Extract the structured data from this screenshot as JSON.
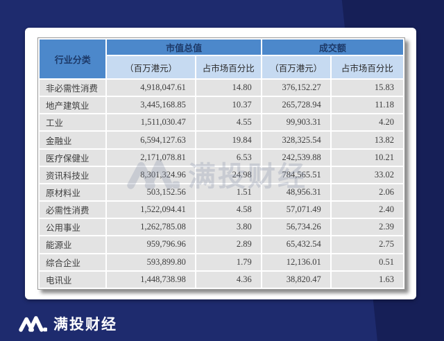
{
  "colors": {
    "background_navy": "#1e2b6e",
    "background_navy_dark": "#161f57",
    "header_blue": "#4c88cb",
    "subheader_blue": "#c6daf1",
    "row_gray": "#e3e3e3",
    "header_text_navy": "#1d3a69",
    "brand_white": "#ffffff"
  },
  "table": {
    "header": {
      "industry": "行业分类",
      "market_cap_group": "市值总值",
      "turnover_group": "成交额",
      "unit": "（百万港元）",
      "pct": "占市场百分比"
    }
  },
  "watermark": {
    "text": "满投财经"
  },
  "footer": {
    "brand": "满投财经"
  },
  "chart_data": {
    "type": "table",
    "columns": [
      "行业分类",
      "市值总值（百万港元）",
      "市值总值占市场百分比",
      "成交额（百万港元）",
      "成交额占市场百分比"
    ],
    "rows": [
      {
        "industry": "非必需性消费",
        "mcap": "4,918,047.61",
        "mcap_pct": "14.80",
        "turnover": "376,152.27",
        "turnover_pct": "15.83"
      },
      {
        "industry": "地产建筑业",
        "mcap": "3,445,168.85",
        "mcap_pct": "10.37",
        "turnover": "265,728.94",
        "turnover_pct": "11.18"
      },
      {
        "industry": "工业",
        "mcap": "1,511,030.47",
        "mcap_pct": "4.55",
        "turnover": "99,903.31",
        "turnover_pct": "4.20"
      },
      {
        "industry": "金融业",
        "mcap": "6,594,127.63",
        "mcap_pct": "19.84",
        "turnover": "328,325.54",
        "turnover_pct": "13.82"
      },
      {
        "industry": "医疗保健业",
        "mcap": "2,171,078.81",
        "mcap_pct": "6.53",
        "turnover": "242,539.88",
        "turnover_pct": "10.21"
      },
      {
        "industry": "资讯科技业",
        "mcap": "8,301,324.96",
        "mcap_pct": "24.98",
        "turnover": "784,565.51",
        "turnover_pct": "33.02"
      },
      {
        "industry": "原材料业",
        "mcap": "503,152.56",
        "mcap_pct": "1.51",
        "turnover": "48,956.31",
        "turnover_pct": "2.06"
      },
      {
        "industry": "必需性消费",
        "mcap": "1,522,094.41",
        "mcap_pct": "4.58",
        "turnover": "57,071.49",
        "turnover_pct": "2.40"
      },
      {
        "industry": "公用事业",
        "mcap": "1,262,785.08",
        "mcap_pct": "3.80",
        "turnover": "56,734.26",
        "turnover_pct": "2.39"
      },
      {
        "industry": "能源业",
        "mcap": "959,796.96",
        "mcap_pct": "2.89",
        "turnover": "65,432.54",
        "turnover_pct": "2.75"
      },
      {
        "industry": "综合企业",
        "mcap": "593,899.80",
        "mcap_pct": "1.79",
        "turnover": "12,136.01",
        "turnover_pct": "0.51"
      },
      {
        "industry": "电讯业",
        "mcap": "1,448,738.98",
        "mcap_pct": "4.36",
        "turnover": "38,820.47",
        "turnover_pct": "1.63"
      }
    ]
  }
}
